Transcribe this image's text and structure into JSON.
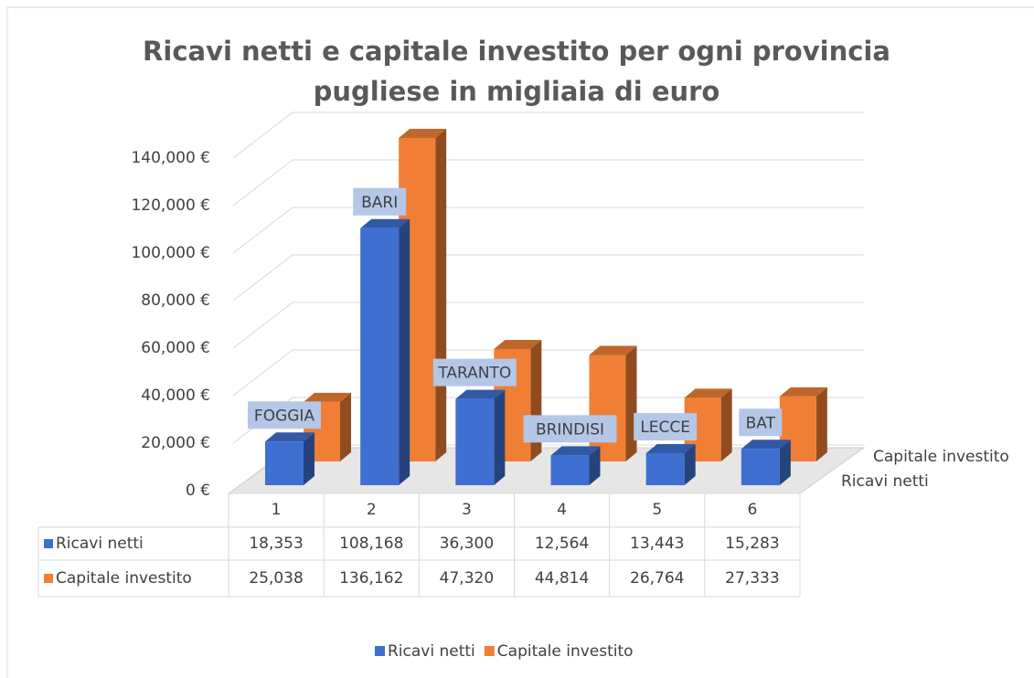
{
  "chart_data": {
    "type": "bar3d",
    "title": "Ricavi netti e capitale investito per ogni provincia pugliese in migliaia di euro",
    "categories": [
      "1",
      "2",
      "3",
      "4",
      "5",
      "6"
    ],
    "annotations": [
      "FOGGIA",
      "BARI",
      "TARANTO",
      "BRINDISI",
      "LECCE",
      "BAT"
    ],
    "series": [
      {
        "name": "Ricavi netti",
        "color": "#3f6fd0",
        "values": [
          18353,
          108168,
          36300,
          12564,
          13443,
          15283
        ],
        "value_labels": [
          "18,353",
          "108,168",
          "36,300",
          "12,564",
          "13,443",
          "15,283"
        ]
      },
      {
        "name": "Capitale investito",
        "color": "#f07f35",
        "values": [
          25038,
          136162,
          47320,
          44814,
          26764,
          27333
        ],
        "value_labels": [
          "25,038",
          "136,162",
          "47,320",
          "44,814",
          "26,764",
          "27,333"
        ]
      }
    ],
    "ylim": [
      0,
      160000
    ],
    "yticks": [
      {
        "value": 0,
        "label": "0 €"
      },
      {
        "value": 20000,
        "label": "20,000 €"
      },
      {
        "value": 40000,
        "label": "40,000 €"
      },
      {
        "value": 60000,
        "label": "60,000 €"
      },
      {
        "value": 80000,
        "label": "80,000 €"
      },
      {
        "value": 100000,
        "label": "100,000 €"
      },
      {
        "value": 120000,
        "label": "120,000 €"
      },
      {
        "value": 140000,
        "label": "140,000 €"
      }
    ],
    "grid": true,
    "legend": "bottom"
  }
}
